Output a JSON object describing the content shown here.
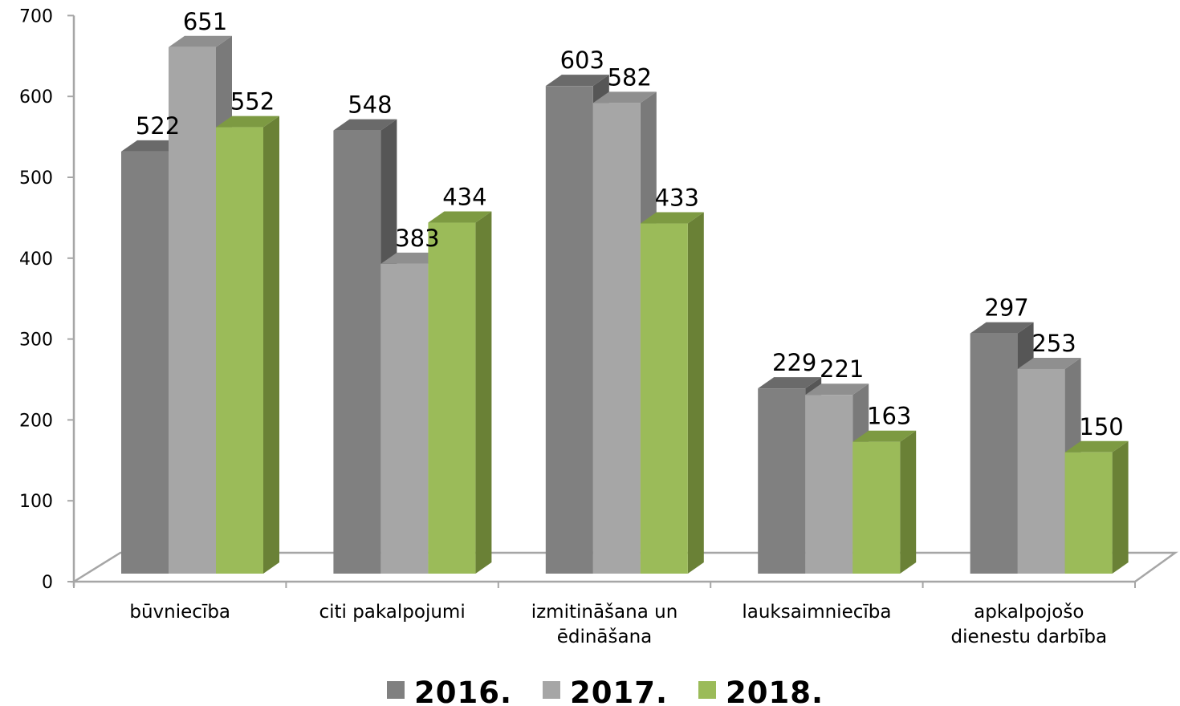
{
  "chart_data": {
    "type": "bar",
    "style": "3d-clustered-column",
    "categories": [
      [
        "būvniecība"
      ],
      [
        "citi pakalpojumi"
      ],
      [
        "izmitināšana un",
        "ēdināšana"
      ],
      [
        "lauksaimniecība"
      ],
      [
        "apkalpojošo",
        "dienestu darbība"
      ]
    ],
    "series": [
      {
        "name": "2016.",
        "values": [
          522,
          548,
          603,
          229,
          297
        ],
        "color": "#808080",
        "side_color": "#565656",
        "top_color": "#6a6a6a"
      },
      {
        "name": "2017.",
        "values": [
          651,
          383,
          582,
          221,
          253
        ],
        "color": "#a6a6a6",
        "side_color": "#7a7a7a",
        "top_color": "#8f8f8f"
      },
      {
        "name": "2018.",
        "values": [
          552,
          434,
          433,
          163,
          150
        ],
        "color": "#9bbb59",
        "side_color": "#6a8136",
        "top_color": "#7d9a42"
      }
    ],
    "yticks": [
      0,
      100,
      200,
      300,
      400,
      500,
      600,
      700
    ],
    "ylim": [
      0,
      700
    ],
    "grid": false,
    "legend": "bottom",
    "title": "",
    "xlabel": "",
    "ylabel": ""
  }
}
